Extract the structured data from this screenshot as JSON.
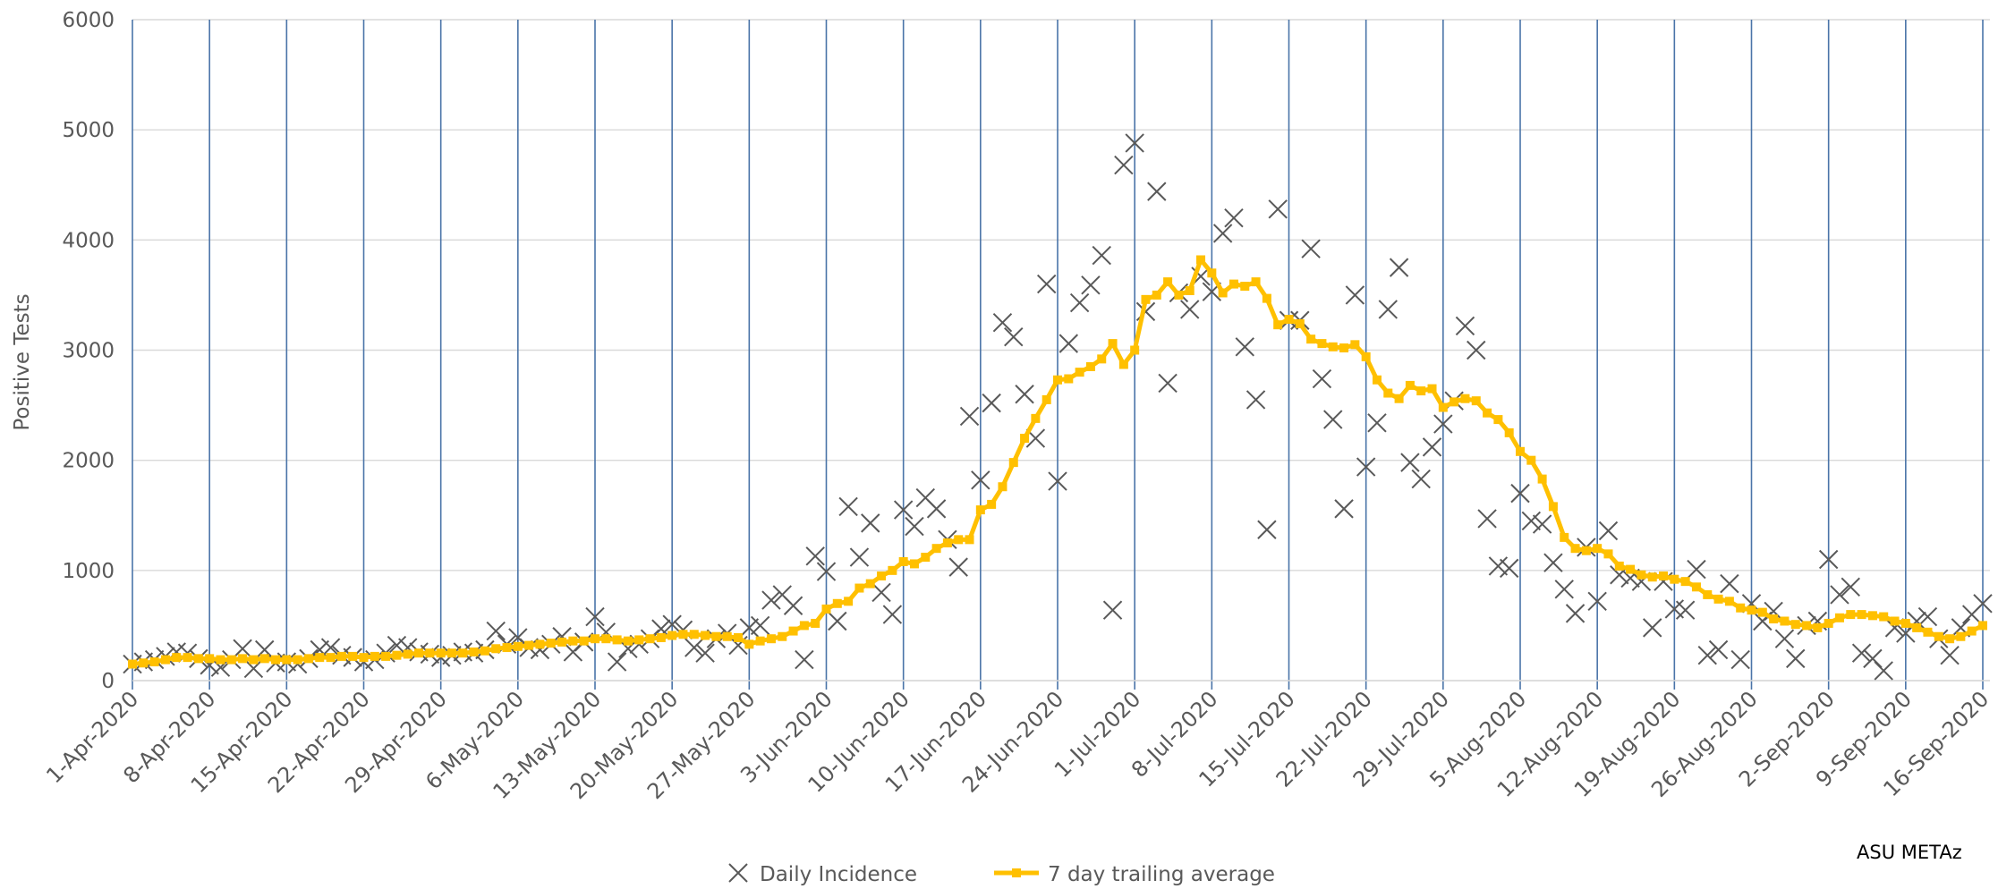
{
  "chart_data": {
    "type": "line",
    "y_label": "Positive Tests",
    "annotation": "ASU METAz",
    "ylim": [
      0,
      6000
    ],
    "yticks": [
      0,
      1000,
      2000,
      3000,
      4000,
      5000,
      6000
    ],
    "grid": true,
    "categories": [
      "1-Apr-2020",
      null,
      null,
      null,
      null,
      null,
      null,
      "8-Apr-2020",
      null,
      null,
      null,
      null,
      null,
      null,
      "15-Apr-2020",
      null,
      null,
      null,
      null,
      null,
      null,
      "22-Apr-2020",
      null,
      null,
      null,
      null,
      null,
      null,
      "29-Apr-2020",
      null,
      null,
      null,
      null,
      null,
      null,
      "6-May-2020",
      null,
      null,
      null,
      null,
      null,
      null,
      "13-May-2020",
      null,
      null,
      null,
      null,
      null,
      null,
      "20-May-2020",
      null,
      null,
      null,
      null,
      null,
      null,
      "27-May-2020",
      null,
      null,
      null,
      null,
      null,
      null,
      "3-Jun-2020",
      null,
      null,
      null,
      null,
      null,
      null,
      "10-Jun-2020",
      null,
      null,
      null,
      null,
      null,
      null,
      "17-Jun-2020",
      null,
      null,
      null,
      null,
      null,
      null,
      "24-Jun-2020",
      null,
      null,
      null,
      null,
      null,
      null,
      "1-Jul-2020",
      null,
      null,
      null,
      null,
      null,
      null,
      "8-Jul-2020",
      null,
      null,
      null,
      null,
      null,
      null,
      "15-Jul-2020",
      null,
      null,
      null,
      null,
      null,
      null,
      "22-Jul-2020",
      null,
      null,
      null,
      null,
      null,
      null,
      "29-Jul-2020",
      null,
      null,
      null,
      null,
      null,
      null,
      "5-Aug-2020",
      null,
      null,
      null,
      null,
      null,
      null,
      "12-Aug-2020",
      null,
      null,
      null,
      null,
      null,
      null,
      "19-Aug-2020",
      null,
      null,
      null,
      null,
      null,
      null,
      "26-Aug-2020",
      null,
      null,
      null,
      null,
      null,
      null,
      "2-Sep-2020",
      null,
      null,
      null,
      null,
      null,
      null,
      "9-Sep-2020",
      null,
      null,
      null,
      null,
      null,
      null,
      "16-Sep-2020"
    ],
    "series": [
      {
        "name": "Daily Incidence",
        "mode": "markers",
        "color": "#595959",
        "values": [
          150,
          170,
          190,
          220,
          260,
          250,
          200,
          140,
          120,
          190,
          290,
          110,
          280,
          160,
          170,
          150,
          200,
          280,
          300,
          230,
          210,
          170,
          190,
          250,
          320,
          300,
          260,
          240,
          210,
          230,
          260,
          250,
          280,
          450,
          330,
          390,
          300,
          280,
          330,
          400,
          260,
          350,
          580,
          440,
          170,
          290,
          330,
          380,
          470,
          510,
          460,
          300,
          250,
          380,
          430,
          320,
          480,
          500,
          730,
          780,
          680,
          190,
          1130,
          990,
          540,
          1580,
          1120,
          1430,
          800,
          600,
          1550,
          1400,
          1660,
          1560,
          1280,
          1030,
          2400,
          1820,
          2520,
          3250,
          3120,
          2600,
          2200,
          3600,
          1810,
          3060,
          3430,
          3590,
          3860,
          640,
          4680,
          4880,
          3350,
          4440,
          2700,
          3520,
          3370,
          3670,
          3530,
          4060,
          4200,
          3030,
          2550,
          1370,
          4280,
          3270,
          3270,
          3920,
          2740,
          2370,
          1560,
          3500,
          1940,
          2340,
          3370,
          3750,
          1980,
          1830,
          2120,
          2330,
          2540,
          3220,
          3000,
          1470,
          1040,
          1020,
          1700,
          1450,
          1420,
          1070,
          830,
          610,
          1210,
          720,
          1360,
          960,
          930,
          900,
          480,
          900,
          650,
          640,
          1010,
          230,
          280,
          880,
          190,
          700,
          540,
          630,
          380,
          200,
          500,
          540,
          1100,
          780,
          850,
          250,
          200,
          90,
          480,
          430,
          540,
          580,
          380,
          230,
          480,
          600,
          700
        ]
      },
      {
        "name": "7 day trailing average",
        "mode": "lines+markers",
        "color": "#ffc000",
        "values": [
          150,
          160,
          170,
          190,
          210,
          210,
          200,
          200,
          190,
          190,
          200,
          190,
          200,
          190,
          190,
          190,
          200,
          210,
          210,
          220,
          220,
          210,
          220,
          220,
          230,
          240,
          250,
          250,
          250,
          250,
          250,
          260,
          270,
          290,
          300,
          310,
          320,
          330,
          340,
          350,
          360,
          360,
          380,
          380,
          370,
          360,
          370,
          380,
          390,
          410,
          420,
          420,
          410,
          400,
          400,
          390,
          330,
          360,
          380,
          400,
          450,
          500,
          520,
          650,
          700,
          720,
          840,
          880,
          950,
          1000,
          1080,
          1060,
          1120,
          1200,
          1250,
          1280,
          1280,
          1550,
          1600,
          1760,
          1980,
          2200,
          2380,
          2550,
          2730,
          2740,
          2800,
          2850,
          2920,
          3060,
          2870,
          3000,
          3460,
          3500,
          3620,
          3500,
          3540,
          3820,
          3700,
          3520,
          3600,
          3580,
          3620,
          3470,
          3230,
          3280,
          3240,
          3100,
          3060,
          3030,
          3020,
          3050,
          2940,
          2730,
          2610,
          2560,
          2680,
          2630,
          2650,
          2480,
          2530,
          2560,
          2540,
          2430,
          2370,
          2250,
          2080,
          2000,
          1830,
          1580,
          1300,
          1200,
          1180,
          1200,
          1150,
          1040,
          1010,
          960,
          940,
          950,
          920,
          900,
          850,
          780,
          740,
          720,
          660,
          640,
          620,
          560,
          540,
          510,
          500,
          480,
          520,
          570,
          600,
          600,
          590,
          580,
          540,
          520,
          480,
          440,
          400,
          380,
          400,
          450,
          500
        ]
      }
    ]
  }
}
